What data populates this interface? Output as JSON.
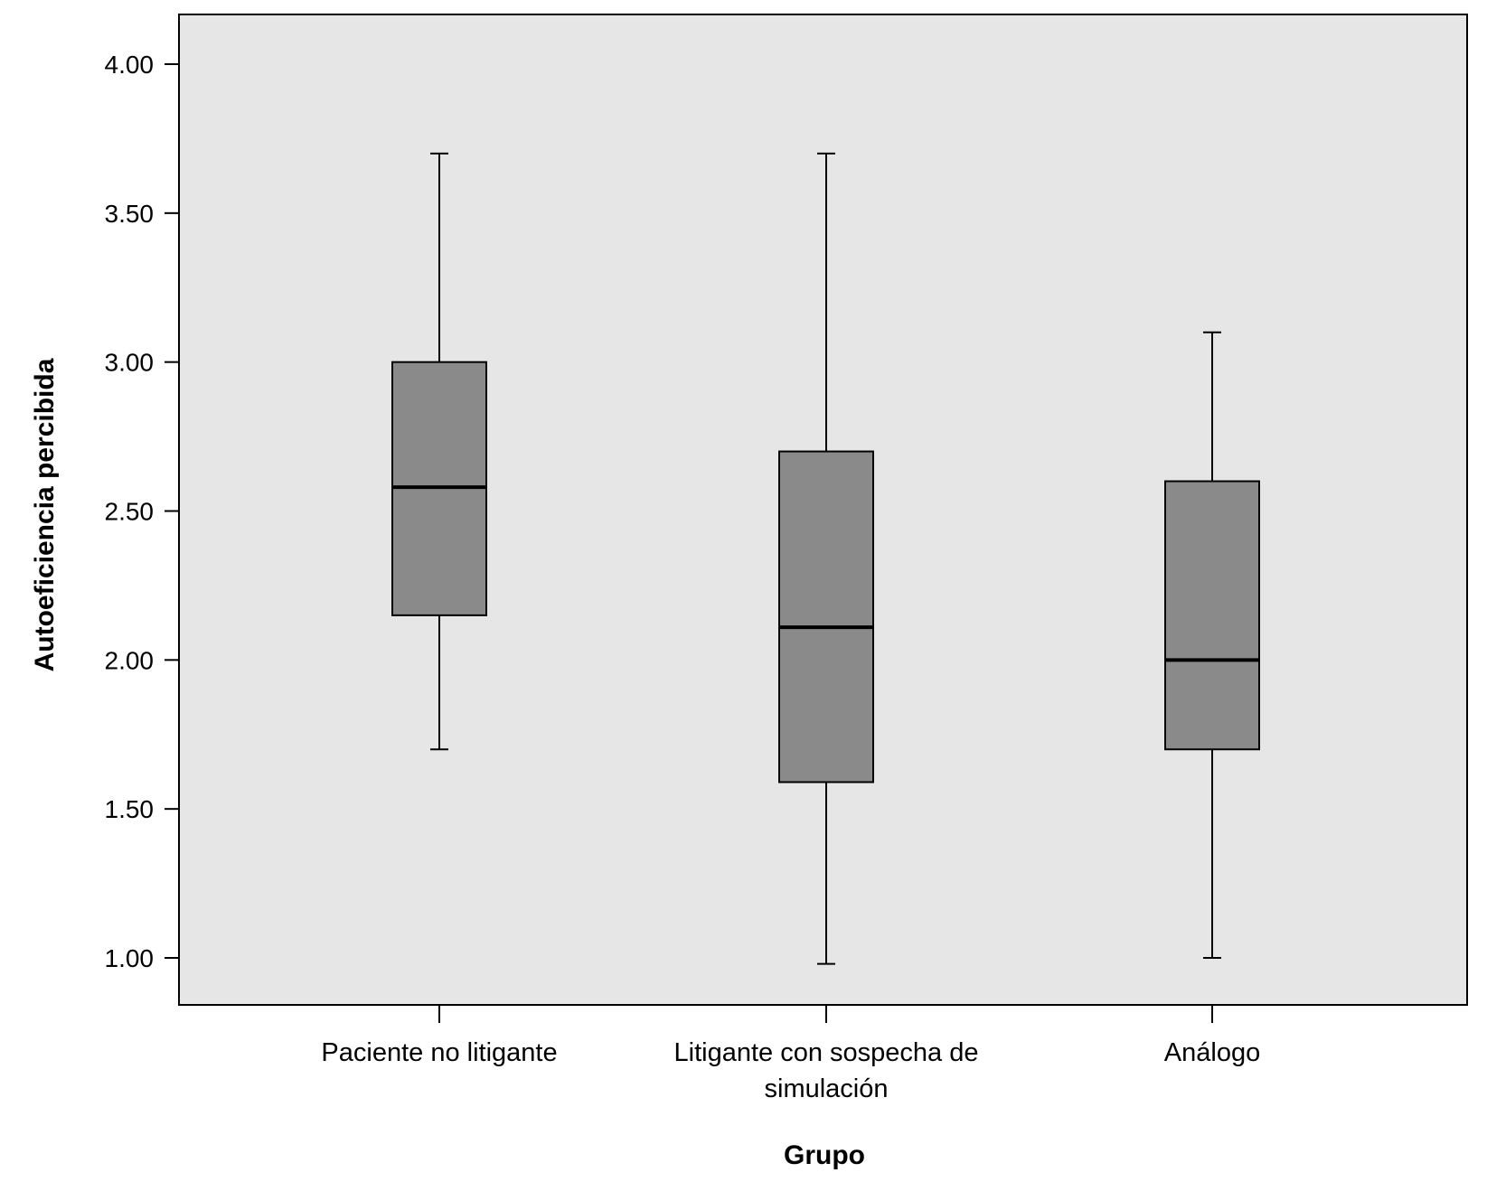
{
  "chart_data": {
    "type": "boxplot",
    "xlabel": "Grupo",
    "ylabel": "Autoeficiencia percibida",
    "ylim": [
      0.85,
      4.17
    ],
    "yticks": [
      1.0,
      1.5,
      2.0,
      2.5,
      3.0,
      3.5,
      4.0
    ],
    "ytick_labels": [
      "1.00",
      "1.50",
      "2.00",
      "2.50",
      "3.00",
      "3.50",
      "4.00"
    ],
    "grid": false,
    "colors": {
      "plot_background": "#e6e6e6",
      "box_fill": "#8a8a8a",
      "line": "#000000"
    },
    "categories": [
      {
        "lines": [
          "Paciente no litigante"
        ],
        "min": 1.7,
        "q1": 2.15,
        "median": 2.58,
        "q3": 3.0,
        "max": 3.7
      },
      {
        "lines": [
          "Litigante con sospecha de",
          "simulación"
        ],
        "min": 0.98,
        "q1": 1.59,
        "median": 2.11,
        "q3": 2.7,
        "max": 3.7
      },
      {
        "lines": [
          "Análogo"
        ],
        "min": 1.0,
        "q1": 1.7,
        "median": 2.0,
        "q3": 2.6,
        "max": 3.1
      }
    ]
  }
}
